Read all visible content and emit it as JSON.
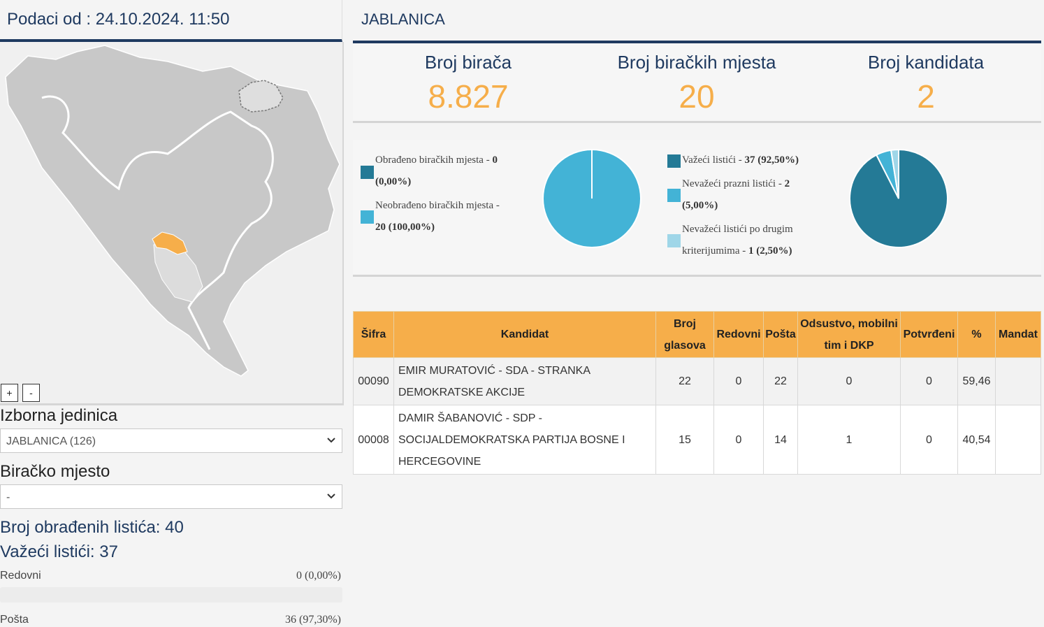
{
  "left": {
    "timestamp": "Podaci od : 24.10.2024. 11:50",
    "zoom_in": "+",
    "zoom_out": "-",
    "izborna_label": "Izborna jedinica",
    "izborna_value": "JABLANICA (126)",
    "biracko_label": "Biračko mjesto",
    "biracko_value": "-",
    "obradjenih": "Broj obrađenih listića: 40",
    "vazeci": "Važeći listići: 37",
    "rows": [
      {
        "label": "Redovni",
        "value": "0 (0,00%)",
        "fraction": 0.0
      },
      {
        "label": "Pošta",
        "value": "36 (97,30%)",
        "fraction": 0.973
      }
    ]
  },
  "right": {
    "title": "JABLANICA",
    "stats": [
      {
        "label": "Broj birača",
        "value": "8.827"
      },
      {
        "label": "Broj biračkih mjesta",
        "value": "20"
      },
      {
        "label": "Broj kandidata",
        "value": "2"
      }
    ]
  },
  "pie1": {
    "legend": [
      {
        "line1": "Obrađeno biračkih mjesta - ",
        "bold1": "0",
        "line2": "",
        "bold2": "(0,00%)",
        "color": "#247a96"
      },
      {
        "line1": "Neobrađeno biračkih mjesta -",
        "bold1": "",
        "line2": "",
        "bold2": "20 (100,00%)",
        "color": "#43b3d6"
      }
    ],
    "fractions": [
      0.0,
      1.0
    ]
  },
  "pie2": {
    "legend": [
      {
        "line1": "Važeći listići - ",
        "bold1": "37 (92,50%)",
        "line2": "",
        "bold2": "",
        "color": "#247a96"
      },
      {
        "line1": "Nevažeći prazni listići - ",
        "bold1": "2",
        "line2": "",
        "bold2": "(5,00%)",
        "color": "#43b3d6"
      },
      {
        "line1": "Nevažeći listići po drugim",
        "bold1": "",
        "line2": "kriterijumima - ",
        "bold2": "1 (2,50%)",
        "color": "#9fd6e8"
      }
    ],
    "fractions": [
      0.925,
      0.05,
      0.025
    ]
  },
  "table": {
    "headers": [
      "Šifra",
      "Kandidat",
      "Broj glasova",
      "Redovni",
      "Pošta",
      "Odsustvo, mobilni tim i DKP",
      "Potvrđeni",
      "%",
      "Mandat"
    ],
    "rows": [
      {
        "sifra": "00090",
        "kandidat": "EMIR MURATOVIĆ - SDA - STRANKA DEMOKRATSKE AKCIJE",
        "glasova": "22",
        "redovni": "0",
        "posta": "22",
        "odsustvo": "0",
        "potvrdjeni": "0",
        "pct": "59,46",
        "mandat": ""
      },
      {
        "sifra": "00008",
        "kandidat": "DAMIR ŠABANOVIĆ - SDP - SOCIJALDEMOKRATSKA PARTIJA BOSNE I HERCEGOVINE",
        "glasova": "15",
        "redovni": "0",
        "posta": "14",
        "odsustvo": "1",
        "potvrdjeni": "0",
        "pct": "40,54",
        "mandat": ""
      }
    ]
  },
  "colors": {
    "navy": "#1f3a60",
    "orange": "#f6ae4a",
    "dark_teal": "#247a96",
    "light_blue": "#43b3d6",
    "pale_blue": "#9fd6e8"
  }
}
